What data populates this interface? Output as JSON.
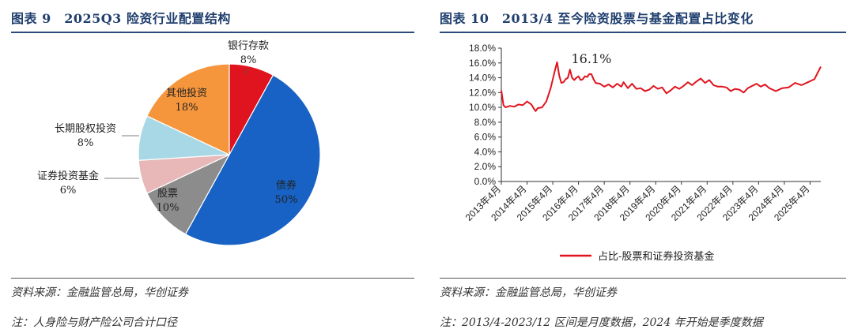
{
  "left": {
    "title": "图表 9　2025Q3 险资行业配置结构",
    "source": "资料来源：金融监管总局，华创证券",
    "note": "注：人身险与财产险公司合计口径"
  },
  "right": {
    "title": "图表 10　2013/4 至今险资股票与基金配置占比变化",
    "source": "资料来源：金融监管总局，华创证券",
    "note": "注：2013/4-2023/12 区间是月度数据，2024 年开始是季度数据"
  },
  "chart_data": [
    {
      "type": "pie",
      "title": "",
      "slices": [
        {
          "label": "银行存款",
          "value": 8,
          "pct_label": "8%",
          "color": "#e0141e"
        },
        {
          "label": "债券",
          "value": 50,
          "pct_label": "50%",
          "color": "#1762c4"
        },
        {
          "label": "股票",
          "value": 10,
          "pct_label": "10%",
          "color": "#8c8c8c"
        },
        {
          "label": "证券投资基金",
          "value": 6,
          "pct_label": "6%",
          "color": "#e8b8b8"
        },
        {
          "label": "长期股权投资",
          "value": 8,
          "pct_label": "8%",
          "color": "#a8d8e6"
        },
        {
          "label": "其他投资",
          "value": 18,
          "pct_label": "18%",
          "color": "#f5963c"
        }
      ]
    },
    {
      "type": "line",
      "title": "",
      "xlabel": "",
      "ylabel": "",
      "ylim": [
        0,
        18
      ],
      "y_ticks": [
        "0.0%",
        "2.0%",
        "4.0%",
        "6.0%",
        "8.0%",
        "10.0%",
        "12.0%",
        "14.0%",
        "16.0%",
        "18.0%"
      ],
      "x_ticks": [
        "2013年4月",
        "2014年4月",
        "2015年4月",
        "2016年4月",
        "2017年4月",
        "2018年4月",
        "2019年4月",
        "2020年4月",
        "2021年4月",
        "2022年4月",
        "2023年4月",
        "2024年4月",
        "2025年4月"
      ],
      "x_range": [
        "2013-04",
        "2025-09"
      ],
      "annotation": {
        "text": "16.1%",
        "x": "2015-06",
        "y": 16.1
      },
      "legend_position": "bottom",
      "series": [
        {
          "name": "占比-股票和证券投资基金",
          "color": "#e0141e",
          "points": [
            [
              "2013-04",
              12.3
            ],
            [
              "2013-05",
              10.3
            ],
            [
              "2013-06",
              10.0
            ],
            [
              "2013-08",
              10.2
            ],
            [
              "2013-10",
              10.1
            ],
            [
              "2013-12",
              10.4
            ],
            [
              "2014-02",
              10.3
            ],
            [
              "2014-04",
              10.8
            ],
            [
              "2014-06",
              10.4
            ],
            [
              "2014-07",
              9.9
            ],
            [
              "2014-08",
              9.5
            ],
            [
              "2014-09",
              9.9
            ],
            [
              "2014-11",
              10.0
            ],
            [
              "2015-01",
              10.8
            ],
            [
              "2015-03",
              12.6
            ],
            [
              "2015-05",
              15.0
            ],
            [
              "2015-06",
              16.1
            ],
            [
              "2015-07",
              14.3
            ],
            [
              "2015-08",
              13.3
            ],
            [
              "2015-09",
              13.4
            ],
            [
              "2015-10",
              13.8
            ],
            [
              "2015-11",
              14.0
            ],
            [
              "2015-12",
              15.1
            ],
            [
              "2016-01",
              14.0
            ],
            [
              "2016-02",
              13.7
            ],
            [
              "2016-03",
              14.0
            ],
            [
              "2016-04",
              14.2
            ],
            [
              "2016-05",
              13.7
            ],
            [
              "2016-06",
              13.8
            ],
            [
              "2016-07",
              14.2
            ],
            [
              "2016-08",
              14.1
            ],
            [
              "2016-09",
              14.5
            ],
            [
              "2016-10",
              14.5
            ],
            [
              "2016-11",
              13.8
            ],
            [
              "2016-12",
              13.3
            ],
            [
              "2017-02",
              13.2
            ],
            [
              "2017-04",
              12.8
            ],
            [
              "2017-06",
              13.1
            ],
            [
              "2017-08",
              12.7
            ],
            [
              "2017-10",
              13.2
            ],
            [
              "2017-12",
              12.8
            ],
            [
              "2018-01",
              13.4
            ],
            [
              "2018-03",
              12.6
            ],
            [
              "2018-05",
              13.2
            ],
            [
              "2018-07",
              12.5
            ],
            [
              "2018-09",
              12.6
            ],
            [
              "2018-11",
              12.2
            ],
            [
              "2019-01",
              12.4
            ],
            [
              "2019-03",
              12.9
            ],
            [
              "2019-05",
              12.5
            ],
            [
              "2019-07",
              12.7
            ],
            [
              "2019-09",
              11.9
            ],
            [
              "2019-11",
              12.3
            ],
            [
              "2020-01",
              12.8
            ],
            [
              "2020-03",
              12.5
            ],
            [
              "2020-05",
              12.9
            ],
            [
              "2020-07",
              13.4
            ],
            [
              "2020-09",
              13.0
            ],
            [
              "2020-11",
              13.5
            ],
            [
              "2021-01",
              13.9
            ],
            [
              "2021-03",
              13.3
            ],
            [
              "2021-05",
              13.7
            ],
            [
              "2021-07",
              13.0
            ],
            [
              "2021-09",
              12.8
            ],
            [
              "2021-11",
              12.8
            ],
            [
              "2022-01",
              12.7
            ],
            [
              "2022-03",
              12.2
            ],
            [
              "2022-05",
              12.5
            ],
            [
              "2022-07",
              12.4
            ],
            [
              "2022-09",
              12.0
            ],
            [
              "2022-11",
              12.6
            ],
            [
              "2023-01",
              12.9
            ],
            [
              "2023-03",
              13.2
            ],
            [
              "2023-05",
              12.8
            ],
            [
              "2023-07",
              13.1
            ],
            [
              "2023-09",
              12.6
            ],
            [
              "2023-12",
              12.2
            ],
            [
              "2024-03",
              12.6
            ],
            [
              "2024-06",
              12.7
            ],
            [
              "2024-09",
              13.3
            ],
            [
              "2024-12",
              13.0
            ],
            [
              "2025-03",
              13.4
            ],
            [
              "2025-06",
              13.8
            ],
            [
              "2025-09",
              15.5
            ]
          ]
        }
      ]
    }
  ]
}
